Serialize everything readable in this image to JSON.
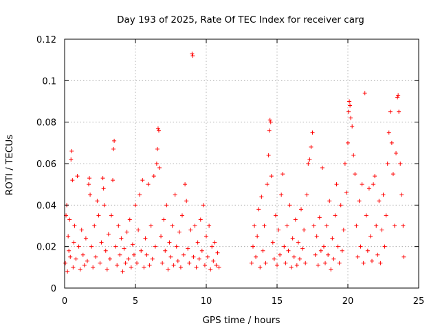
{
  "chart_data": {
    "type": "scatter",
    "title": "Day 193 of 2025, Rate Of TEC Index for receiver carg",
    "xlabel": "GPS time / hours",
    "ylabel": "ROTI / TECUs",
    "xlim": [
      0,
      25
    ],
    "ylim": [
      0,
      0.12
    ],
    "xticks": [
      0,
      5,
      10,
      15,
      20,
      25
    ],
    "xtick_labels": [
      "0",
      "5",
      "10",
      "15",
      "20",
      "25"
    ],
    "yticks": [
      0,
      0.02,
      0.04,
      0.06,
      0.08,
      0.1,
      0.12
    ],
    "ytick_labels": [
      "0",
      "0.02",
      "0.04",
      "0.06",
      "0.08",
      "0.1",
      "0.12"
    ],
    "grid": true,
    "marker": "+",
    "color": "#ff0000",
    "series": [
      {
        "name": "ROTI",
        "points": [
          [
            0.05,
            0.012
          ],
          [
            0.1,
            0.035
          ],
          [
            0.15,
            0.04
          ],
          [
            0.2,
            0.008
          ],
          [
            0.25,
            0.025
          ],
          [
            0.3,
            0.018
          ],
          [
            0.35,
            0.033
          ],
          [
            0.4,
            0.015
          ],
          [
            0.45,
            0.062
          ],
          [
            0.5,
            0.066
          ],
          [
            0.55,
            0.052
          ],
          [
            0.6,
            0.01
          ],
          [
            0.65,
            0.022
          ],
          [
            0.7,
            0.03
          ],
          [
            0.8,
            0.014
          ],
          [
            0.9,
            0.054
          ],
          [
            1.0,
            0.02
          ],
          [
            1.1,
            0.009
          ],
          [
            1.2,
            0.028
          ],
          [
            1.3,
            0.016
          ],
          [
            1.4,
            0.011
          ],
          [
            1.5,
            0.024
          ],
          [
            1.6,
            0.013
          ],
          [
            1.7,
            0.05
          ],
          [
            1.75,
            0.053
          ],
          [
            1.8,
            0.045
          ],
          [
            1.9,
            0.02
          ],
          [
            2.0,
            0.01
          ],
          [
            2.1,
            0.03
          ],
          [
            2.2,
            0.015
          ],
          [
            2.3,
            0.042
          ],
          [
            2.4,
            0.035
          ],
          [
            2.5,
            0.012
          ],
          [
            2.6,
            0.022
          ],
          [
            2.7,
            0.053
          ],
          [
            2.75,
            0.048
          ],
          [
            2.8,
            0.04
          ],
          [
            2.9,
            0.018
          ],
          [
            3.0,
            0.009
          ],
          [
            3.1,
            0.026
          ],
          [
            3.2,
            0.014
          ],
          [
            3.3,
            0.035
          ],
          [
            3.4,
            0.052
          ],
          [
            3.45,
            0.067
          ],
          [
            3.5,
            0.071
          ],
          [
            3.6,
            0.02
          ],
          [
            3.7,
            0.011
          ],
          [
            3.8,
            0.03
          ],
          [
            3.9,
            0.016
          ],
          [
            4.0,
            0.024
          ],
          [
            4.1,
            0.008
          ],
          [
            4.2,
            0.019
          ],
          [
            4.3,
            0.012
          ],
          [
            4.4,
            0.027
          ],
          [
            4.5,
            0.014
          ],
          [
            4.6,
            0.033
          ],
          [
            4.7,
            0.01
          ],
          [
            4.8,
            0.021
          ],
          [
            4.9,
            0.016
          ],
          [
            5.0,
            0.04
          ],
          [
            5.1,
            0.012
          ],
          [
            5.2,
            0.028
          ],
          [
            5.3,
            0.045
          ],
          [
            5.4,
            0.018
          ],
          [
            5.5,
            0.052
          ],
          [
            5.6,
            0.01
          ],
          [
            5.7,
            0.024
          ],
          [
            5.8,
            0.016
          ],
          [
            5.9,
            0.05
          ],
          [
            6.0,
            0.011
          ],
          [
            6.1,
            0.03
          ],
          [
            6.2,
            0.014
          ],
          [
            6.3,
            0.054
          ],
          [
            6.4,
            0.02
          ],
          [
            6.5,
            0.06
          ],
          [
            6.55,
            0.067
          ],
          [
            6.6,
            0.077
          ],
          [
            6.65,
            0.076
          ],
          [
            6.7,
            0.058
          ],
          [
            6.8,
            0.025
          ],
          [
            6.9,
            0.012
          ],
          [
            7.0,
            0.033
          ],
          [
            7.1,
            0.018
          ],
          [
            7.2,
            0.04
          ],
          [
            7.3,
            0.009
          ],
          [
            7.4,
            0.022
          ],
          [
            7.5,
            0.015
          ],
          [
            7.6,
            0.03
          ],
          [
            7.7,
            0.011
          ],
          [
            7.8,
            0.045
          ],
          [
            7.9,
            0.02
          ],
          [
            8.0,
            0.013
          ],
          [
            8.1,
            0.027
          ],
          [
            8.2,
            0.01
          ],
          [
            8.3,
            0.035
          ],
          [
            8.4,
            0.016
          ],
          [
            8.5,
            0.05
          ],
          [
            8.6,
            0.042
          ],
          [
            8.7,
            0.019
          ],
          [
            8.8,
            0.012
          ],
          [
            8.9,
            0.028
          ],
          [
            9.0,
            0.113
          ],
          [
            9.05,
            0.112
          ],
          [
            9.1,
            0.015
          ],
          [
            9.2,
            0.03
          ],
          [
            9.3,
            0.01
          ],
          [
            9.4,
            0.022
          ],
          [
            9.5,
            0.014
          ],
          [
            9.6,
            0.033
          ],
          [
            9.7,
            0.018
          ],
          [
            9.8,
            0.04
          ],
          [
            9.9,
            0.011
          ],
          [
            10.0,
            0.025
          ],
          [
            10.1,
            0.015
          ],
          [
            10.2,
            0.03
          ],
          [
            10.3,
            0.009
          ],
          [
            10.4,
            0.02
          ],
          [
            10.5,
            0.013
          ],
          [
            10.6,
            0.022
          ],
          [
            10.7,
            0.011
          ],
          [
            10.8,
            0.017
          ],
          [
            10.9,
            0.01
          ],
          [
            13.2,
            0.012
          ],
          [
            13.3,
            0.02
          ],
          [
            13.4,
            0.03
          ],
          [
            13.5,
            0.015
          ],
          [
            13.6,
            0.025
          ],
          [
            13.7,
            0.038
          ],
          [
            13.8,
            0.01
          ],
          [
            13.9,
            0.044
          ],
          [
            14.0,
            0.018
          ],
          [
            14.1,
            0.03
          ],
          [
            14.2,
            0.012
          ],
          [
            14.3,
            0.05
          ],
          [
            14.4,
            0.064
          ],
          [
            14.45,
            0.076
          ],
          [
            14.5,
            0.081
          ],
          [
            14.55,
            0.08
          ],
          [
            14.6,
            0.054
          ],
          [
            14.7,
            0.022
          ],
          [
            14.8,
            0.014
          ],
          [
            14.9,
            0.035
          ],
          [
            15.0,
            0.011
          ],
          [
            15.1,
            0.028
          ],
          [
            15.2,
            0.016
          ],
          [
            15.3,
            0.045
          ],
          [
            15.4,
            0.055
          ],
          [
            15.5,
            0.02
          ],
          [
            15.6,
            0.012
          ],
          [
            15.7,
            0.03
          ],
          [
            15.8,
            0.018
          ],
          [
            15.9,
            0.04
          ],
          [
            16.0,
            0.01
          ],
          [
            16.1,
            0.024
          ],
          [
            16.2,
            0.015
          ],
          [
            16.3,
            0.033
          ],
          [
            16.4,
            0.011
          ],
          [
            16.5,
            0.022
          ],
          [
            16.6,
            0.014
          ],
          [
            16.7,
            0.038
          ],
          [
            16.8,
            0.019
          ],
          [
            16.9,
            0.028
          ],
          [
            17.0,
            0.012
          ],
          [
            17.1,
            0.045
          ],
          [
            17.2,
            0.06
          ],
          [
            17.3,
            0.062
          ],
          [
            17.4,
            0.068
          ],
          [
            17.5,
            0.075
          ],
          [
            17.6,
            0.03
          ],
          [
            17.7,
            0.016
          ],
          [
            17.8,
            0.025
          ],
          [
            17.9,
            0.011
          ],
          [
            18.0,
            0.034
          ],
          [
            18.1,
            0.018
          ],
          [
            18.2,
            0.058
          ],
          [
            18.3,
            0.02
          ],
          [
            18.4,
            0.012
          ],
          [
            18.5,
            0.03
          ],
          [
            18.6,
            0.016
          ],
          [
            18.7,
            0.042
          ],
          [
            18.8,
            0.009
          ],
          [
            18.9,
            0.024
          ],
          [
            19.0,
            0.014
          ],
          [
            19.1,
            0.035
          ],
          [
            19.2,
            0.05
          ],
          [
            19.3,
            0.02
          ],
          [
            19.4,
            0.012
          ],
          [
            19.5,
            0.04
          ],
          [
            19.6,
            0.018
          ],
          [
            19.7,
            0.028
          ],
          [
            19.8,
            0.06
          ],
          [
            19.9,
            0.046
          ],
          [
            20.0,
            0.07
          ],
          [
            20.05,
            0.085
          ],
          [
            20.1,
            0.09
          ],
          [
            20.15,
            0.088
          ],
          [
            20.2,
            0.082
          ],
          [
            20.3,
            0.078
          ],
          [
            20.4,
            0.064
          ],
          [
            20.5,
            0.055
          ],
          [
            20.6,
            0.03
          ],
          [
            20.7,
            0.015
          ],
          [
            20.8,
            0.042
          ],
          [
            20.9,
            0.02
          ],
          [
            21.0,
            0.05
          ],
          [
            21.1,
            0.012
          ],
          [
            21.2,
            0.094
          ],
          [
            21.3,
            0.035
          ],
          [
            21.4,
            0.018
          ],
          [
            21.5,
            0.048
          ],
          [
            21.6,
            0.025
          ],
          [
            21.7,
            0.013
          ],
          [
            21.8,
            0.05
          ],
          [
            21.9,
            0.054
          ],
          [
            22.0,
            0.03
          ],
          [
            22.1,
            0.016
          ],
          [
            22.2,
            0.042
          ],
          [
            22.3,
            0.012
          ],
          [
            22.4,
            0.028
          ],
          [
            22.5,
            0.045
          ],
          [
            22.6,
            0.02
          ],
          [
            22.7,
            0.035
          ],
          [
            22.8,
            0.06
          ],
          [
            22.9,
            0.075
          ],
          [
            23.0,
            0.085
          ],
          [
            23.1,
            0.07
          ],
          [
            23.2,
            0.055
          ],
          [
            23.3,
            0.03
          ],
          [
            23.4,
            0.065
          ],
          [
            23.5,
            0.092
          ],
          [
            23.55,
            0.093
          ],
          [
            23.6,
            0.085
          ],
          [
            23.7,
            0.06
          ],
          [
            23.8,
            0.045
          ],
          [
            23.9,
            0.03
          ],
          [
            23.95,
            0.015
          ]
        ]
      }
    ],
    "gap": [
      11.0,
      13.2
    ]
  }
}
